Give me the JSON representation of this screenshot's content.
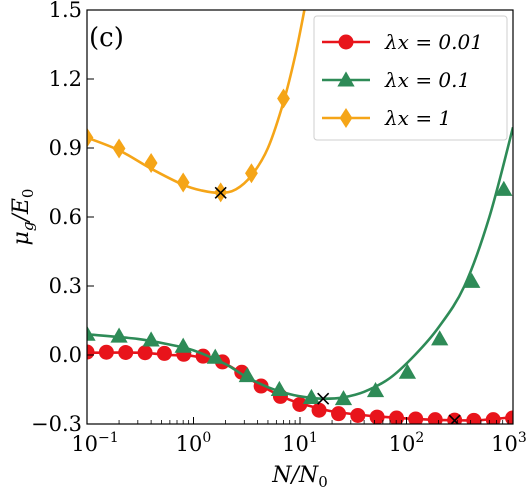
{
  "chart_data": {
    "type": "line",
    "panel_label": "(c)",
    "xlabel": "N/N0",
    "ylabel": "μg/E0",
    "xscale": "log",
    "xlim": [
      0.1,
      1000
    ],
    "ylim": [
      -0.3,
      1.5
    ],
    "x_ticks": [
      {
        "base": "10",
        "exp": "−1",
        "value": 0.1
      },
      {
        "base": "10",
        "exp": "0",
        "value": 1
      },
      {
        "base": "10",
        "exp": "1",
        "value": 10
      },
      {
        "base": "10",
        "exp": "2",
        "value": 100
      },
      {
        "base": "10",
        "exp": "3",
        "value": 1000
      }
    ],
    "y_ticks": [
      {
        "label": "−0.3",
        "value": -0.3
      },
      {
        "label": "0.0",
        "value": 0.0
      },
      {
        "label": "0.3",
        "value": 0.3
      },
      {
        "label": "0.6",
        "value": 0.6
      },
      {
        "label": "0.9",
        "value": 0.9
      },
      {
        "label": "1.2",
        "value": 1.2
      },
      {
        "label": "1.5",
        "value": 1.5
      }
    ],
    "legend_position": "top-right",
    "series": [
      {
        "name": "λx = 0.01",
        "color": "#e8141b",
        "marker": "circle",
        "curve": [
          [
            0.1,
            0.01
          ],
          [
            0.3,
            0.01
          ],
          [
            0.6,
            0.0
          ],
          [
            1,
            -0.005
          ],
          [
            2,
            -0.04
          ],
          [
            3,
            -0.09
          ],
          [
            5,
            -0.15
          ],
          [
            8,
            -0.195
          ],
          [
            12,
            -0.22
          ],
          [
            20,
            -0.245
          ],
          [
            40,
            -0.262
          ],
          [
            80,
            -0.273
          ],
          [
            150,
            -0.28
          ],
          [
            300,
            -0.284
          ],
          [
            500,
            -0.283
          ],
          [
            1000,
            -0.27
          ]
        ],
        "markers": [
          [
            0.1,
            0.013
          ],
          [
            0.152,
            0.012
          ],
          [
            0.231,
            0.011
          ],
          [
            0.351,
            0.01
          ],
          [
            0.533,
            0.007
          ],
          [
            0.81,
            0.003
          ],
          [
            1.23,
            -0.005
          ],
          [
            1.87,
            -0.03
          ],
          [
            2.84,
            -0.075
          ],
          [
            4.31,
            -0.135
          ],
          [
            6.55,
            -0.18
          ],
          [
            9.95,
            -0.215
          ],
          [
            15.1,
            -0.24
          ],
          [
            23.0,
            -0.255
          ],
          [
            34.9,
            -0.263
          ],
          [
            53.0,
            -0.27
          ],
          [
            80.6,
            -0.274
          ],
          [
            122,
            -0.278
          ],
          [
            186,
            -0.281
          ],
          [
            283,
            -0.283
          ],
          [
            429,
            -0.284
          ],
          [
            652,
            -0.281
          ],
          [
            991,
            -0.274
          ]
        ],
        "minimum": [
          283,
          -0.285
        ]
      },
      {
        "name": "λx = 0.1",
        "color": "#2e8b57",
        "marker": "triangle",
        "curve": [
          [
            0.1,
            0.09
          ],
          [
            0.3,
            0.07
          ],
          [
            0.6,
            0.045
          ],
          [
            1,
            0.02
          ],
          [
            2,
            -0.04
          ],
          [
            3,
            -0.09
          ],
          [
            5,
            -0.14
          ],
          [
            8,
            -0.17
          ],
          [
            12,
            -0.185
          ],
          [
            17,
            -0.19
          ],
          [
            25,
            -0.185
          ],
          [
            40,
            -0.16
          ],
          [
            70,
            -0.1
          ],
          [
            120,
            0.0
          ],
          [
            200,
            0.12
          ],
          [
            350,
            0.3
          ],
          [
            600,
            0.6
          ],
          [
            1000,
            0.99
          ]
        ],
        "markers": [
          [
            0.1,
            0.09
          ],
          [
            0.2,
            0.082
          ],
          [
            0.4,
            0.065
          ],
          [
            0.8,
            0.038
          ],
          [
            1.6,
            -0.01
          ],
          [
            3.2,
            -0.09
          ],
          [
            6.4,
            -0.15
          ],
          [
            12.8,
            -0.185
          ],
          [
            25.6,
            -0.19
          ],
          [
            51.2,
            -0.155
          ],
          [
            102,
            -0.075
          ],
          [
            205,
            0.07
          ],
          [
            410,
            0.32
          ],
          [
            820,
            0.72
          ]
        ],
        "minimum": [
          16.5,
          -0.19
        ]
      },
      {
        "name": "λx = 1",
        "color": "#f5a518",
        "marker": "diamond",
        "curve": [
          [
            0.1,
            0.945
          ],
          [
            0.2,
            0.89
          ],
          [
            0.4,
            0.81
          ],
          [
            0.8,
            0.74
          ],
          [
            1.2,
            0.715
          ],
          [
            1.8,
            0.705
          ],
          [
            2.5,
            0.72
          ],
          [
            3.5,
            0.78
          ],
          [
            5,
            0.9
          ],
          [
            7,
            1.1
          ],
          [
            9,
            1.3
          ],
          [
            11,
            1.5
          ]
        ],
        "markers": [
          [
            0.1,
            0.945
          ],
          [
            0.2,
            0.898
          ],
          [
            0.4,
            0.835
          ],
          [
            0.8,
            0.75
          ],
          [
            1.8,
            0.707
          ],
          [
            3.5,
            0.79
          ],
          [
            7,
            1.115
          ]
        ],
        "minimum": [
          1.8,
          0.705
        ]
      }
    ]
  }
}
